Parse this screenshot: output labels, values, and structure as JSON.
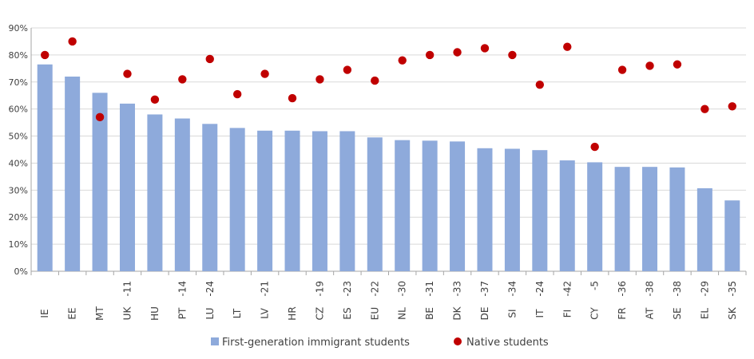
{
  "chart_data": {
    "type": "bar",
    "title": "",
    "xlabel": "",
    "ylabel": "",
    "ylim": [
      0,
      90
    ],
    "y_ticks": [
      0,
      10,
      20,
      30,
      40,
      50,
      60,
      70,
      80,
      90
    ],
    "y_tick_labels": [
      "0%",
      "10%",
      "20%",
      "30%",
      "40%",
      "50%",
      "60%",
      "70%",
      "80%",
      "90%"
    ],
    "grid": true,
    "legend_position": "bottom",
    "categories": [
      "IE",
      "EE",
      "MT",
      "UK",
      "HU",
      "PT",
      "LU",
      "LT",
      "LV",
      "HR",
      "CZ",
      "ES",
      "EU",
      "NL",
      "BE",
      "DK",
      "DE",
      "SI",
      "IT",
      "FI",
      "CY",
      "FR",
      "AT",
      "SE",
      "EL",
      "SK"
    ],
    "gap_labels": [
      "",
      "",
      "",
      "-11",
      "",
      "-14",
      "-24",
      "",
      "-21",
      "",
      "-19",
      "-23",
      "-22",
      "-30",
      "-31",
      "-33",
      "-37",
      "-34",
      "-24",
      "-42",
      "-5",
      "-36",
      "-38",
      "-38",
      "-29",
      "-35"
    ],
    "series": [
      {
        "name": "First-generation immigrant students",
        "kind": "bar",
        "color": "#8eaadb",
        "values": [
          76.5,
          72,
          66,
          62,
          58,
          56.5,
          54.5,
          53,
          52,
          52,
          51.8,
          51.8,
          49.5,
          48.5,
          48.3,
          48,
          45.5,
          45.3,
          44.8,
          41,
          40.3,
          38.6,
          38.6,
          38.4,
          30.7,
          26.2
        ]
      },
      {
        "name": "Native students",
        "kind": "marker",
        "color": "#c00000",
        "values": [
          80,
          85,
          57,
          73,
          63.5,
          71,
          78.5,
          65.5,
          73,
          64,
          71,
          74.5,
          70.5,
          78,
          80,
          81,
          82.5,
          80,
          69,
          83,
          46,
          74.5,
          76,
          76.5,
          60,
          61
        ]
      }
    ]
  }
}
